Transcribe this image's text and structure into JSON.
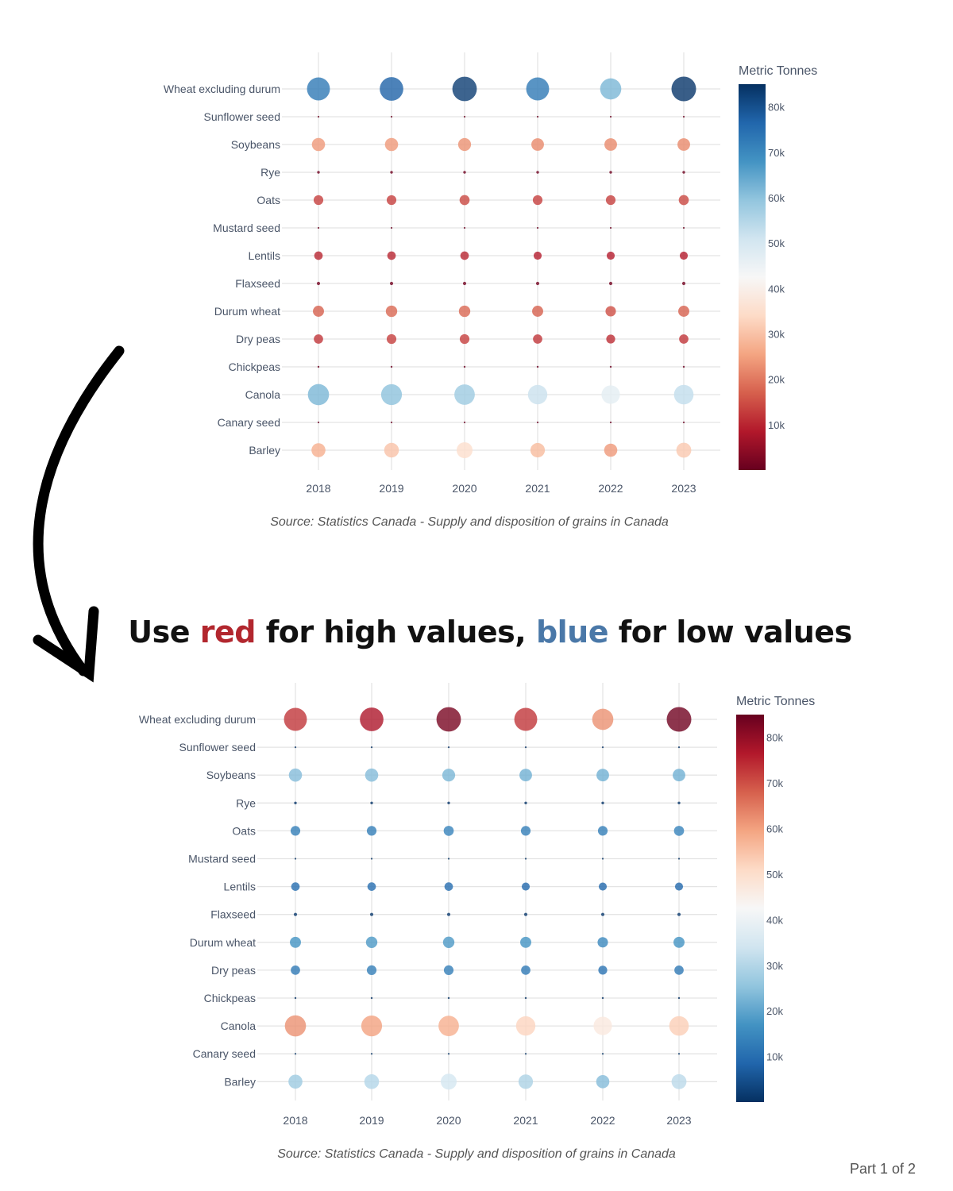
{
  "headline": {
    "part1": "Use ",
    "red_word": "red",
    "part2": " for high values, ",
    "blue_word": "blue",
    "part3": " for low values",
    "red_color": "#b2272e",
    "blue_color": "#4a78a8"
  },
  "page_label": "Part 1 of 2",
  "colors": {
    "RdBu": [
      "#67001f",
      "#b2182b",
      "#d6604d",
      "#f4a582",
      "#fddbc7",
      "#f7f7f7",
      "#d1e5f0",
      "#92c5de",
      "#4393c3",
      "#2166ac",
      "#053061"
    ]
  },
  "chart_data": [
    {
      "type": "scatter",
      "id": "top",
      "colorscale": "RdBu",
      "reversed": false,
      "colorbar_title": "Metric Tonnes",
      "colorbar_ticks": [
        "10k",
        "20k",
        "30k",
        "40k",
        "50k",
        "60k",
        "70k",
        "80k"
      ],
      "color_range": [
        0,
        85000
      ],
      "source": "Source: Statistics Canada - Supply and disposition of grains in Canada",
      "x": [
        "2018",
        "2019",
        "2020",
        "2021",
        "2022",
        "2023"
      ],
      "categories": [
        "Wheat excluding durum",
        "Sunflower seed",
        "Soybeans",
        "Rye",
        "Oats",
        "Mustard seed",
        "Lentils",
        "Flaxseed",
        "Durum wheat",
        "Dry peas",
        "Chickpeas",
        "Canola",
        "Canary seed",
        "Barley"
      ],
      "series": [
        {
          "name": "Wheat excluding durum",
          "values": [
            73000,
            77000,
            83000,
            73000,
            62000,
            84000
          ]
        },
        {
          "name": "Sunflower seed",
          "values": [
            200,
            200,
            200,
            200,
            200,
            200
          ]
        },
        {
          "name": "Soybeans",
          "values": [
            24000,
            24000,
            23000,
            22000,
            22000,
            22000
          ]
        },
        {
          "name": "Rye",
          "values": [
            1000,
            1000,
            1000,
            1000,
            1000,
            1000
          ]
        },
        {
          "name": "Oats",
          "values": [
            13000,
            13000,
            14000,
            13000,
            13000,
            14000
          ]
        },
        {
          "name": "Mustard seed",
          "values": [
            300,
            300,
            300,
            300,
            300,
            300
          ]
        },
        {
          "name": "Lentils",
          "values": [
            10000,
            10000,
            10000,
            9000,
            9000,
            9000
          ]
        },
        {
          "name": "Flaxseed",
          "values": [
            1500,
            1500,
            1500,
            1500,
            1500,
            1500
          ]
        },
        {
          "name": "Durum wheat",
          "values": [
            17000,
            18000,
            18000,
            17000,
            15000,
            17000
          ]
        },
        {
          "name": "Dry peas",
          "values": [
            12000,
            13000,
            13000,
            12000,
            11000,
            12000
          ]
        },
        {
          "name": "Chickpeas",
          "values": [
            500,
            500,
            500,
            500,
            500,
            500
          ]
        },
        {
          "name": "Canola",
          "values": [
            62000,
            60000,
            58000,
            52000,
            47000,
            53000
          ]
        },
        {
          "name": "Canary seed",
          "values": [
            400,
            400,
            400,
            400,
            400,
            400
          ]
        },
        {
          "name": "Barley",
          "values": [
            27000,
            30000,
            35000,
            29000,
            24000,
            31000
          ]
        }
      ]
    },
    {
      "type": "scatter",
      "id": "bottom",
      "colorscale": "RdBu",
      "reversed": true,
      "colorbar_title": "Metric Tonnes",
      "colorbar_ticks": [
        "10k",
        "20k",
        "30k",
        "40k",
        "50k",
        "60k",
        "70k",
        "80k"
      ],
      "color_range": [
        0,
        85000
      ],
      "source": "Source: Statistics Canada - Supply and disposition of grains in Canada",
      "x": [
        "2018",
        "2019",
        "2020",
        "2021",
        "2022",
        "2023"
      ],
      "categories": [
        "Wheat excluding durum",
        "Sunflower seed",
        "Soybeans",
        "Rye",
        "Oats",
        "Mustard seed",
        "Lentils",
        "Flaxseed",
        "Durum wheat",
        "Dry peas",
        "Chickpeas",
        "Canola",
        "Canary seed",
        "Barley"
      ],
      "series": [
        {
          "name": "Wheat excluding durum",
          "values": [
            73000,
            77000,
            83000,
            73000,
            62000,
            84000
          ]
        },
        {
          "name": "Sunflower seed",
          "values": [
            200,
            200,
            200,
            200,
            200,
            200
          ]
        },
        {
          "name": "Soybeans",
          "values": [
            24000,
            24000,
            23000,
            22000,
            22000,
            22000
          ]
        },
        {
          "name": "Rye",
          "values": [
            1000,
            1000,
            1000,
            1000,
            1000,
            1000
          ]
        },
        {
          "name": "Oats",
          "values": [
            13000,
            13000,
            14000,
            13000,
            13000,
            14000
          ]
        },
        {
          "name": "Mustard seed",
          "values": [
            300,
            300,
            300,
            300,
            300,
            300
          ]
        },
        {
          "name": "Lentils",
          "values": [
            10000,
            10000,
            10000,
            9000,
            9000,
            9000
          ]
        },
        {
          "name": "Flaxseed",
          "values": [
            1500,
            1500,
            1500,
            1500,
            1500,
            1500
          ]
        },
        {
          "name": "Durum wheat",
          "values": [
            17000,
            18000,
            18000,
            17000,
            15000,
            17000
          ]
        },
        {
          "name": "Dry peas",
          "values": [
            12000,
            13000,
            13000,
            12000,
            11000,
            12000
          ]
        },
        {
          "name": "Chickpeas",
          "values": [
            500,
            500,
            500,
            500,
            500,
            500
          ]
        },
        {
          "name": "Canola",
          "values": [
            62000,
            60000,
            58000,
            52000,
            47000,
            53000
          ]
        },
        {
          "name": "Canary seed",
          "values": [
            400,
            400,
            400,
            400,
            400,
            400
          ]
        },
        {
          "name": "Barley",
          "values": [
            27000,
            30000,
            35000,
            29000,
            24000,
            31000
          ]
        }
      ]
    }
  ]
}
